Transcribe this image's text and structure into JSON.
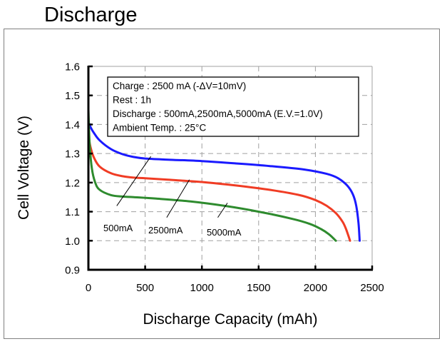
{
  "page": {
    "title": "Discharge"
  },
  "chart_data": {
    "type": "line",
    "title": "Discharge",
    "xlabel": "Discharge Capacity (mAh)",
    "ylabel": "Cell Voltage (V)",
    "xlim": [
      0,
      2500
    ],
    "ylim": [
      0.9,
      1.6
    ],
    "xticks": [
      0,
      500,
      1000,
      1500,
      2000,
      2500
    ],
    "yticks": [
      0.9,
      1.0,
      1.1,
      1.2,
      1.3,
      1.4,
      1.5,
      1.6
    ],
    "xtick_labels": [
      "0",
      "500",
      "1000",
      "1500",
      "2000",
      "2500"
    ],
    "ytick_labels": [
      "0.9",
      "1.0",
      "1.1",
      "1.2",
      "1.3",
      "1.4",
      "1.5",
      "1.6"
    ],
    "grid": true,
    "legend_box": {
      "placement": "top-center",
      "lines": [
        "Charge : 2500 mA (-ΔV=10mV)",
        "Rest : 1h",
        "Discharge : 500mA,2500mA,5000mA (E.V.=1.0V)",
        "Ambient Temp. : 25°C"
      ]
    },
    "series": [
      {
        "name": "500mA",
        "color": "#1a1aff",
        "x": [
          0,
          20,
          50,
          100,
          200,
          300,
          400,
          500,
          700,
          1000,
          1300,
          1600,
          1900,
          2100,
          2200,
          2280,
          2330,
          2360,
          2380,
          2390
        ],
        "y": [
          1.41,
          1.39,
          1.37,
          1.345,
          1.315,
          1.298,
          1.288,
          1.283,
          1.279,
          1.274,
          1.266,
          1.257,
          1.245,
          1.23,
          1.215,
          1.19,
          1.16,
          1.12,
          1.06,
          1.0
        ]
      },
      {
        "name": "2500mA",
        "color": "#f03c24",
        "x": [
          0,
          20,
          50,
          100,
          200,
          300,
          400,
          500,
          700,
          1000,
          1300,
          1600,
          1850,
          2000,
          2100,
          2180,
          2240,
          2270,
          2290,
          2305
        ],
        "y": [
          1.36,
          1.32,
          1.285,
          1.255,
          1.232,
          1.222,
          1.217,
          1.215,
          1.21,
          1.202,
          1.19,
          1.175,
          1.158,
          1.14,
          1.12,
          1.095,
          1.065,
          1.04,
          1.018,
          1.0
        ]
      },
      {
        "name": "5000mA",
        "color": "#2e8b2e",
        "x": [
          0,
          10,
          30,
          60,
          100,
          200,
          300,
          400,
          600,
          900,
          1200,
          1500,
          1800,
          1950,
          2050,
          2120,
          2180
        ],
        "y": [
          1.45,
          1.34,
          1.25,
          1.2,
          1.175,
          1.157,
          1.152,
          1.15,
          1.145,
          1.135,
          1.12,
          1.1,
          1.075,
          1.058,
          1.04,
          1.022,
          1.0
        ]
      }
    ],
    "annotations": [
      {
        "text": "500mA",
        "series": "500mA",
        "line_from": [
          250,
          1.12
        ],
        "line_to": [
          550,
          1.29
        ]
      },
      {
        "text": "2500mA",
        "series": "2500mA",
        "line_from": [
          690,
          1.08
        ],
        "line_to": [
          890,
          1.21
        ]
      },
      {
        "text": "5000mA",
        "series": "5000mA",
        "line_from": [
          1140,
          1.08
        ],
        "line_to": [
          1225,
          1.13
        ]
      }
    ]
  }
}
